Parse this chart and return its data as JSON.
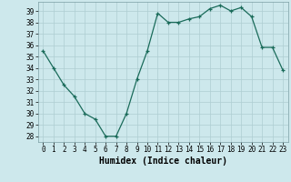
{
  "x": [
    0,
    1,
    2,
    3,
    4,
    5,
    6,
    7,
    8,
    9,
    10,
    11,
    12,
    13,
    14,
    15,
    16,
    17,
    18,
    19,
    20,
    21,
    22,
    23
  ],
  "y": [
    35.5,
    34.0,
    32.5,
    31.5,
    30.0,
    29.5,
    28.0,
    28.0,
    30.0,
    33.0,
    35.5,
    38.8,
    38.0,
    38.0,
    38.3,
    38.5,
    39.2,
    39.5,
    39.0,
    39.3,
    38.5,
    35.8,
    35.8,
    33.8
  ],
  "xlabel": "Humidex (Indice chaleur)",
  "xlim": [
    -0.5,
    23.5
  ],
  "ylim": [
    27.5,
    39.8
  ],
  "yticks": [
    28,
    29,
    30,
    31,
    32,
    33,
    34,
    35,
    36,
    37,
    38,
    39
  ],
  "xticks": [
    0,
    1,
    2,
    3,
    4,
    5,
    6,
    7,
    8,
    9,
    10,
    11,
    12,
    13,
    14,
    15,
    16,
    17,
    18,
    19,
    20,
    21,
    22,
    23
  ],
  "line_color": "#1a6b5a",
  "marker": "+",
  "bg_color": "#cde8ec",
  "grid_color": "#aecdd2",
  "fig_bg": "#cde8ec"
}
